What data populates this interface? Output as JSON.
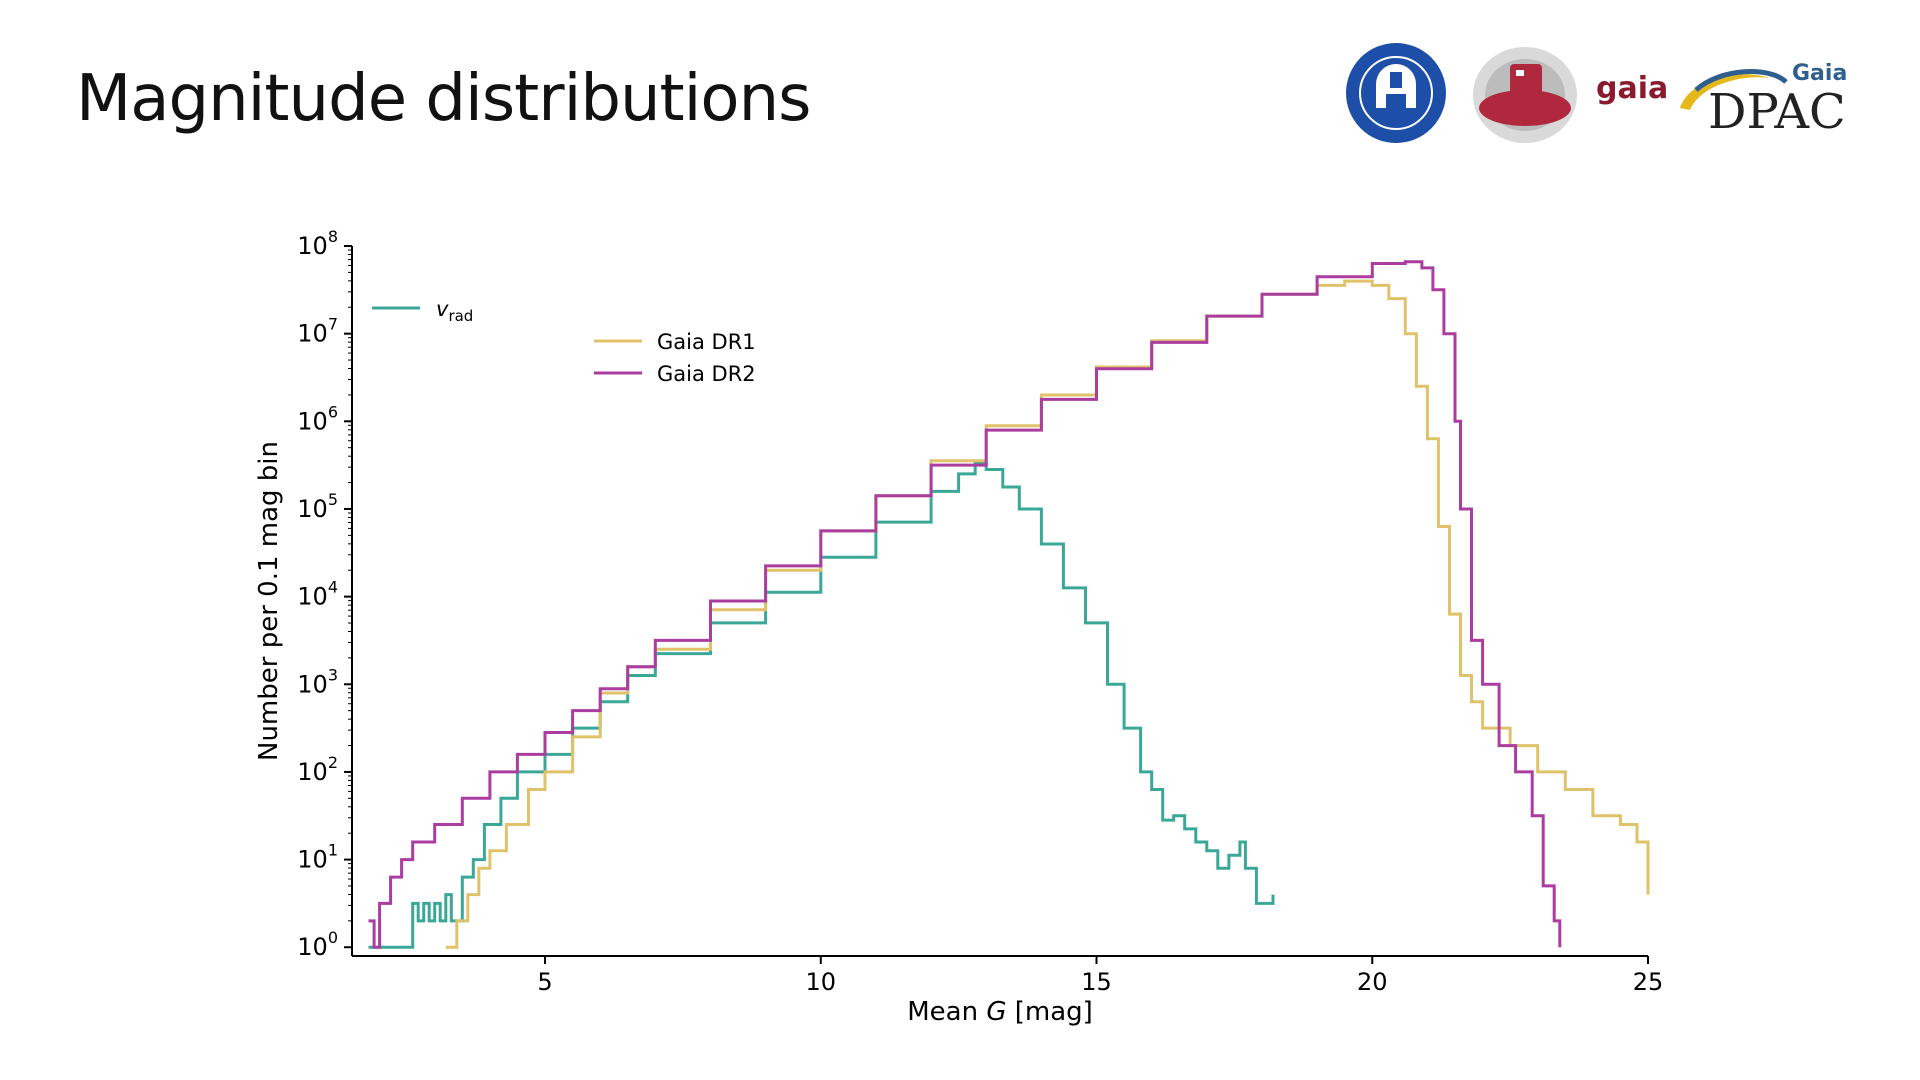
{
  "slide": {
    "title": "Magnitude distributions"
  },
  "logos": {
    "mpia_seal_icon": "mpia-seal",
    "gaia_satellite_icon": "gaia-satellite",
    "gaia_word": "gaia",
    "dpac_small": "Gaia",
    "dpac_big": "DPAC"
  },
  "colors": {
    "vrad": "#3aa797",
    "dr1": "#e0c26a",
    "dr2": "#aa3d9f",
    "gaia_word": "#8b1a2f",
    "dpac_blue": "#2f5f8f",
    "mpia_blue": "#1d4fa8"
  },
  "chart_data": {
    "type": "line",
    "subtype": "step-histogram",
    "xlabel_prefix": "Mean ",
    "xlabel_var": "G",
    "xlabel_suffix": " [mag]",
    "ylabel": "Number per 0.1 mag bin",
    "xlim": [
      1.5,
      25
    ],
    "ylim_log10": [
      -0.1,
      8
    ],
    "yscale": "log",
    "x_ticks": [
      5,
      10,
      15,
      20,
      25
    ],
    "x_tick_labels": [
      "5",
      "10",
      "15",
      "20",
      "25"
    ],
    "y_ticks_log10": [
      0,
      1,
      2,
      3,
      4,
      5,
      6,
      7,
      8
    ],
    "y_tick_labels": [
      {
        "base": "10",
        "exp": "0"
      },
      {
        "base": "10",
        "exp": "1"
      },
      {
        "base": "10",
        "exp": "2"
      },
      {
        "base": "10",
        "exp": "3"
      },
      {
        "base": "10",
        "exp": "4"
      },
      {
        "base": "10",
        "exp": "5"
      },
      {
        "base": "10",
        "exp": "6"
      },
      {
        "base": "10",
        "exp": "7"
      },
      {
        "base": "10",
        "exp": "8"
      }
    ],
    "legend_top_left": {
      "main": "v",
      "sub": "rad"
    },
    "legend_upper_left": [
      "Gaia DR1",
      "Gaia DR2"
    ],
    "series": [
      {
        "name": "vrad",
        "color": "#3aa797",
        "points": [
          [
            1.8,
            0
          ],
          [
            2.5,
            0
          ],
          [
            2.6,
            0.5
          ],
          [
            2.7,
            0.3
          ],
          [
            2.8,
            0.5
          ],
          [
            2.9,
            0.3
          ],
          [
            3.0,
            0.5
          ],
          [
            3.1,
            0.3
          ],
          [
            3.2,
            0.6
          ],
          [
            3.3,
            0.3
          ],
          [
            3.4,
            0.3
          ],
          [
            3.5,
            0.8
          ],
          [
            3.6,
            0.8
          ],
          [
            3.7,
            1.0
          ],
          [
            3.9,
            1.4
          ],
          [
            4.2,
            1.7
          ],
          [
            4.5,
            2.0
          ],
          [
            5.0,
            2.2
          ],
          [
            5.5,
            2.5
          ],
          [
            6.0,
            2.8
          ],
          [
            6.5,
            3.1
          ],
          [
            7.0,
            3.35
          ],
          [
            8.0,
            3.7
          ],
          [
            9.0,
            4.05
          ],
          [
            10.0,
            4.45
          ],
          [
            11.0,
            4.85
          ],
          [
            12.0,
            5.2
          ],
          [
            12.5,
            5.4
          ],
          [
            12.8,
            5.52
          ],
          [
            13.0,
            5.45
          ],
          [
            13.3,
            5.25
          ],
          [
            13.6,
            5.0
          ],
          [
            14.0,
            4.6
          ],
          [
            14.4,
            4.1
          ],
          [
            14.8,
            3.7
          ],
          [
            15.2,
            3.0
          ],
          [
            15.5,
            2.5
          ],
          [
            15.8,
            2.0
          ],
          [
            16.0,
            1.8
          ],
          [
            16.2,
            1.45
          ],
          [
            16.4,
            1.5
          ],
          [
            16.6,
            1.35
          ],
          [
            16.8,
            1.2
          ],
          [
            17.0,
            1.1
          ],
          [
            17.2,
            0.9
          ],
          [
            17.4,
            1.05
          ],
          [
            17.6,
            1.2
          ],
          [
            17.7,
            0.9
          ],
          [
            17.9,
            0.5
          ],
          [
            18.0,
            0.5
          ],
          [
            18.2,
            0.6
          ]
        ]
      },
      {
        "name": "Gaia DR1",
        "color": "#e0c26a",
        "points": [
          [
            3.2,
            0
          ],
          [
            3.4,
            0.3
          ],
          [
            3.6,
            0.6
          ],
          [
            3.8,
            0.9
          ],
          [
            4.0,
            1.1
          ],
          [
            4.3,
            1.4
          ],
          [
            4.7,
            1.8
          ],
          [
            5.0,
            2.0
          ],
          [
            5.5,
            2.4
          ],
          [
            6.0,
            2.9
          ],
          [
            6.5,
            3.2
          ],
          [
            7.0,
            3.4
          ],
          [
            8.0,
            3.85
          ],
          [
            9.0,
            4.3
          ],
          [
            10.0,
            4.75
          ],
          [
            11.0,
            5.15
          ],
          [
            12.0,
            5.55
          ],
          [
            13.0,
            5.95
          ],
          [
            14.0,
            6.3
          ],
          [
            15.0,
            6.62
          ],
          [
            16.0,
            6.92
          ],
          [
            17.0,
            7.2
          ],
          [
            18.0,
            7.45
          ],
          [
            19.0,
            7.55
          ],
          [
            19.5,
            7.6
          ],
          [
            20.0,
            7.55
          ],
          [
            20.3,
            7.4
          ],
          [
            20.6,
            7.0
          ],
          [
            20.8,
            6.4
          ],
          [
            21.0,
            5.8
          ],
          [
            21.2,
            4.8
          ],
          [
            21.4,
            3.8
          ],
          [
            21.6,
            3.1
          ],
          [
            21.8,
            2.8
          ],
          [
            22.0,
            2.5
          ],
          [
            22.5,
            2.3
          ],
          [
            23.0,
            2.0
          ],
          [
            23.5,
            1.8
          ],
          [
            24.0,
            1.5
          ],
          [
            24.5,
            1.4
          ],
          [
            24.8,
            1.2
          ],
          [
            25.0,
            0.6
          ]
        ]
      },
      {
        "name": "Gaia DR2",
        "color": "#aa3d9f",
        "points": [
          [
            1.8,
            0.3
          ],
          [
            1.9,
            0
          ],
          [
            2.0,
            0.5
          ],
          [
            2.2,
            0.8
          ],
          [
            2.4,
            1.0
          ],
          [
            2.6,
            1.2
          ],
          [
            3.0,
            1.4
          ],
          [
            3.5,
            1.7
          ],
          [
            4.0,
            2.0
          ],
          [
            4.5,
            2.2
          ],
          [
            5.0,
            2.45
          ],
          [
            5.5,
            2.7
          ],
          [
            6.0,
            2.95
          ],
          [
            6.5,
            3.2
          ],
          [
            7.0,
            3.5
          ],
          [
            8.0,
            3.95
          ],
          [
            9.0,
            4.35
          ],
          [
            10.0,
            4.75
          ],
          [
            11.0,
            5.15
          ],
          [
            12.0,
            5.5
          ],
          [
            13.0,
            5.9
          ],
          [
            14.0,
            6.25
          ],
          [
            15.0,
            6.6
          ],
          [
            16.0,
            6.9
          ],
          [
            17.0,
            7.2
          ],
          [
            18.0,
            7.45
          ],
          [
            19.0,
            7.65
          ],
          [
            20.0,
            7.8
          ],
          [
            20.6,
            7.82
          ],
          [
            20.9,
            7.75
          ],
          [
            21.1,
            7.5
          ],
          [
            21.3,
            7.0
          ],
          [
            21.5,
            6.0
          ],
          [
            21.6,
            5.0
          ],
          [
            21.8,
            3.5
          ],
          [
            22.0,
            3.0
          ],
          [
            22.3,
            2.3
          ],
          [
            22.6,
            2.0
          ],
          [
            22.9,
            1.5
          ],
          [
            23.1,
            0.7
          ],
          [
            23.3,
            0.3
          ],
          [
            23.4,
            0
          ]
        ]
      }
    ]
  }
}
